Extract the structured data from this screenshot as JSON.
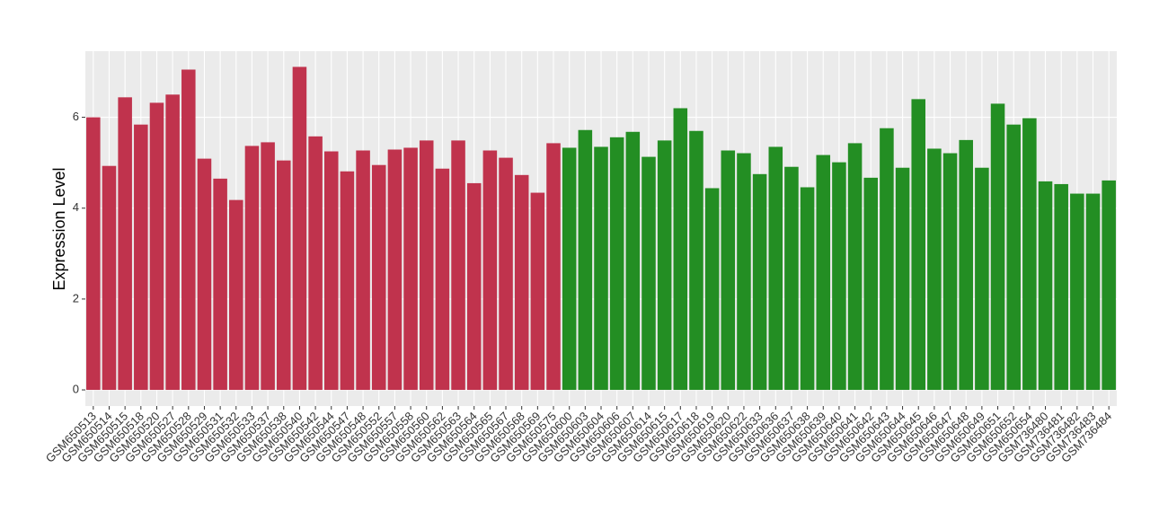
{
  "chart_data": {
    "type": "bar",
    "y_label": "Expression Level",
    "categories": [
      "GSM650513",
      "GSM650514",
      "GSM650515",
      "GSM650518",
      "GSM650520",
      "GSM650527",
      "GSM650528",
      "GSM650529",
      "GSM650531",
      "GSM650532",
      "GSM650533",
      "GSM650537",
      "GSM650538",
      "GSM650540",
      "GSM650542",
      "GSM650544",
      "GSM650547",
      "GSM650548",
      "GSM650552",
      "GSM650557",
      "GSM650558",
      "GSM650560",
      "GSM650562",
      "GSM650563",
      "GSM650564",
      "GSM650565",
      "GSM650567",
      "GSM650568",
      "GSM650569",
      "GSM650575",
      "GSM650600",
      "GSM650603",
      "GSM650604",
      "GSM650606",
      "GSM650607",
      "GSM650614",
      "GSM650615",
      "GSM650617",
      "GSM650618",
      "GSM650619",
      "GSM650620",
      "GSM650622",
      "GSM650633",
      "GSM650636",
      "GSM650637",
      "GSM650638",
      "GSM650639",
      "GSM650640",
      "GSM650641",
      "GSM650642",
      "GSM650643",
      "GSM650644",
      "GSM650645",
      "GSM650646",
      "GSM650647",
      "GSM650648",
      "GSM650649",
      "GSM650651",
      "GSM650652",
      "GSM650654",
      "GSM736480",
      "GSM736481",
      "GSM736482",
      "GSM736483",
      "GSM736484"
    ],
    "values": [
      6.0,
      4.93,
      6.44,
      5.84,
      6.32,
      6.5,
      7.05,
      5.09,
      4.65,
      4.18,
      5.37,
      5.45,
      5.05,
      7.11,
      5.58,
      5.25,
      4.81,
      5.27,
      4.95,
      5.29,
      5.33,
      5.49,
      4.87,
      5.49,
      4.55,
      5.27,
      5.11,
      4.73,
      4.34,
      5.43,
      5.33,
      5.72,
      5.35,
      5.56,
      5.68,
      5.13,
      5.49,
      6.2,
      5.7,
      4.44,
      5.27,
      5.21,
      4.75,
      5.35,
      4.91,
      4.46,
      5.17,
      5.01,
      5.43,
      4.67,
      5.76,
      4.89,
      6.4,
      5.31,
      5.21,
      5.5,
      4.89,
      6.3,
      5.84,
      5.98,
      4.59,
      4.53,
      4.32,
      4.32,
      4.61
    ],
    "colors": [
      "#c0334d",
      "#c0334d",
      "#c0334d",
      "#c0334d",
      "#c0334d",
      "#c0334d",
      "#c0334d",
      "#c0334d",
      "#c0334d",
      "#c0334d",
      "#c0334d",
      "#c0334d",
      "#c0334d",
      "#c0334d",
      "#c0334d",
      "#c0334d",
      "#c0334d",
      "#c0334d",
      "#c0334d",
      "#c0334d",
      "#c0334d",
      "#c0334d",
      "#c0334d",
      "#c0334d",
      "#c0334d",
      "#c0334d",
      "#c0334d",
      "#c0334d",
      "#c0334d",
      "#c0334d",
      "#238e23",
      "#238e23",
      "#238e23",
      "#238e23",
      "#238e23",
      "#238e23",
      "#238e23",
      "#238e23",
      "#238e23",
      "#238e23",
      "#238e23",
      "#238e23",
      "#238e23",
      "#238e23",
      "#238e23",
      "#238e23",
      "#238e23",
      "#238e23",
      "#238e23",
      "#238e23",
      "#238e23",
      "#238e23",
      "#238e23",
      "#238e23",
      "#238e23",
      "#238e23",
      "#238e23",
      "#238e23",
      "#238e23",
      "#238e23",
      "#238e23",
      "#238e23",
      "#238e23",
      "#238e23",
      "#238e23"
    ],
    "ylim": [
      -0.355,
      7.455
    ],
    "yticks": [
      0,
      2,
      4,
      6
    ],
    "grid": true
  }
}
